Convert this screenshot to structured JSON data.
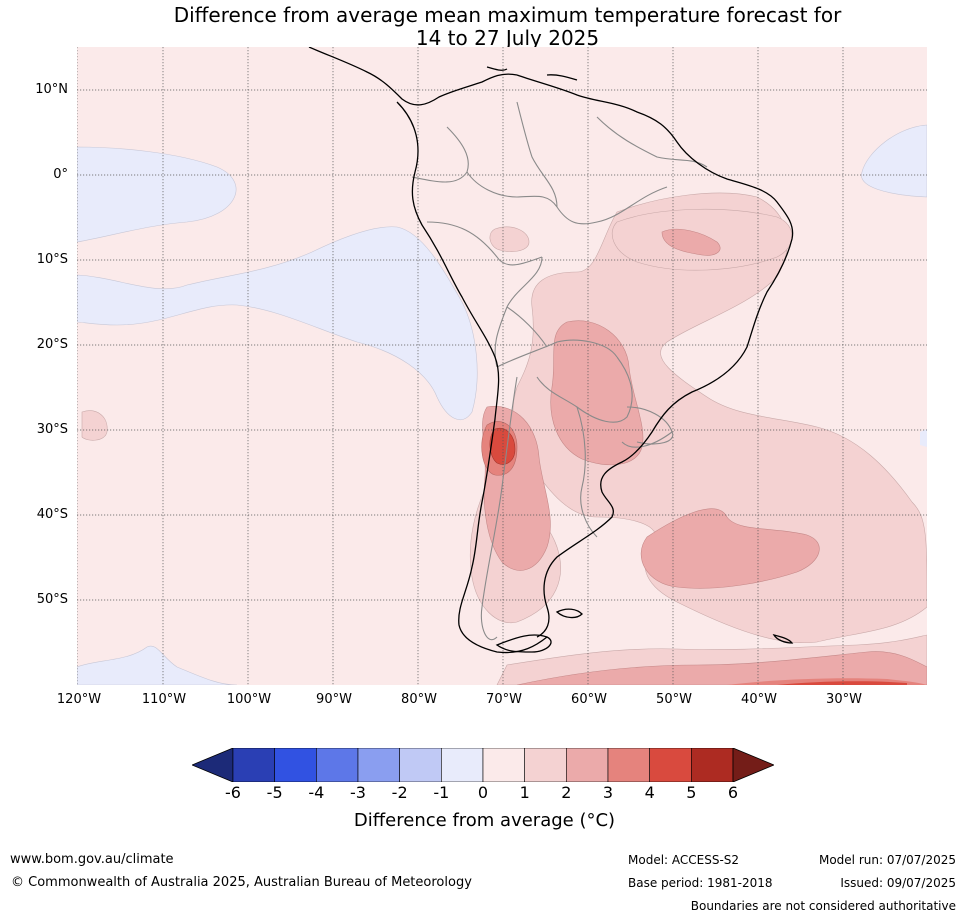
{
  "title_line1": "Difference from average mean maximum temperature forecast for",
  "title_line2": "14 to 27 July 2025",
  "lat_labels": [
    "10°N",
    "0°",
    "10°S",
    "20°S",
    "30°S",
    "40°S",
    "50°S"
  ],
  "lon_labels": [
    "120°W",
    "110°W",
    "100°W",
    "90°W",
    "80°W",
    "70°W",
    "60°W",
    "50°W",
    "40°W",
    "30°W"
  ],
  "colorbar": {
    "ticks": [
      "-6",
      "-5",
      "-4",
      "-3",
      "-2",
      "-1",
      "0",
      "1",
      "2",
      "3",
      "4",
      "5",
      "6"
    ],
    "colors": [
      "#1c2a78",
      "#2a3fb4",
      "#3152e2",
      "#5d77e8",
      "#8a9ef0",
      "#c0c9f5",
      "#e8ebfb",
      "#fbeaea",
      "#f4d2d2",
      "#ebaaaa",
      "#e5837d",
      "#d94a3e",
      "#ad2b22",
      "#741d18"
    ],
    "label": "Difference from average (°C)"
  },
  "map": {
    "ocean_positive_color": "#fbeaea",
    "negative_color": "#e8ebfb",
    "level2_color": "#f4d2d2",
    "level3_color": "#ebaaaa",
    "level4_color": "#e5837d",
    "level5_color": "#d94a3e"
  },
  "footer": {
    "website": "www.bom.gov.au/climate",
    "copyright": "© Commonwealth of Australia 2025, Australian Bureau of Meteorology",
    "model": "Model: ACCESS-S2",
    "base_period": "Base period: 1981-2018",
    "model_run": "Model run: 07/07/2025",
    "issued": "Issued: 09/07/2025",
    "boundaries": "Boundaries are not considered authoritative"
  }
}
